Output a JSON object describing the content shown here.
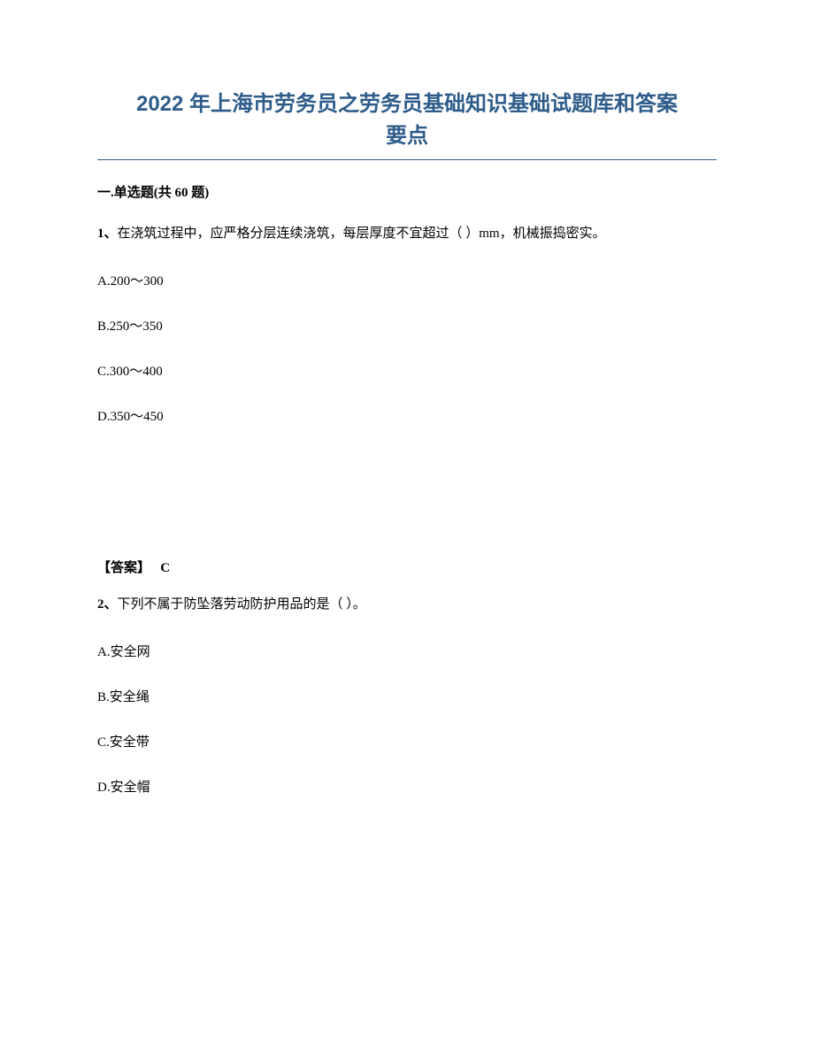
{
  "title": {
    "line1": "2022 年上海市劳务员之劳务员基础知识基础试题库和答案",
    "line2": "要点",
    "color": "#2e5c8a",
    "fontsize": 24
  },
  "section": {
    "header": "一.单选题(共 60 题)"
  },
  "questions": [
    {
      "number": "1、",
      "text": "在浇筑过程中，应严格分层连续浇筑，每层厚度不宜超过（ ）mm，机械振捣密实。",
      "options": [
        "A.200～300",
        "B.250～350",
        "C.300～400",
        "D.350～450"
      ],
      "answer_label": "【答案】",
      "answer_value": "C"
    },
    {
      "number": "2、",
      "text": "下列不属于防坠落劳动防护用品的是（ ）。",
      "options": [
        "A.安全网",
        "B.安全绳",
        "C.安全带",
        "D.安全帽"
      ]
    }
  ],
  "colors": {
    "title": "#2e5c8a",
    "text": "#000000",
    "background": "#ffffff"
  },
  "typography": {
    "title_fontsize": 24,
    "body_fontsize": 15,
    "title_font": "Microsoft YaHei",
    "body_font": "SimSun"
  }
}
